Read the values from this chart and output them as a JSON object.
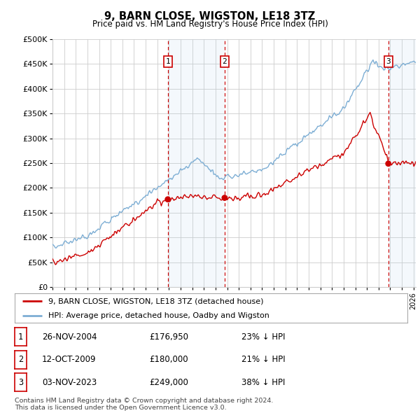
{
  "title": "9, BARN CLOSE, WIGSTON, LE18 3TZ",
  "subtitle": "Price paid vs. HM Land Registry's House Price Index (HPI)",
  "ylim": [
    0,
    500000
  ],
  "yticks": [
    0,
    50000,
    100000,
    150000,
    200000,
    250000,
    300000,
    350000,
    400000,
    450000,
    500000
  ],
  "ytick_labels": [
    "£0",
    "£50K",
    "£100K",
    "£150K",
    "£200K",
    "£250K",
    "£300K",
    "£350K",
    "£400K",
    "£450K",
    "£500K"
  ],
  "hpi_color": "#7daed4",
  "price_color": "#cc0000",
  "background_color": "#ffffff",
  "grid_color": "#cccccc",
  "sale1_date_x": 2004.9,
  "sale1_price": 176950,
  "sale2_date_x": 2009.78,
  "sale2_price": 180000,
  "sale3_date_x": 2023.84,
  "sale3_price": 249000,
  "legend_line1": "9, BARN CLOSE, WIGSTON, LE18 3TZ (detached house)",
  "legend_line2": "HPI: Average price, detached house, Oadby and Wigston",
  "table_entries": [
    {
      "num": "1",
      "date": "26-NOV-2004",
      "price": "£176,950",
      "hpi": "23% ↓ HPI"
    },
    {
      "num": "2",
      "date": "12-OCT-2009",
      "price": "£180,000",
      "hpi": "21% ↓ HPI"
    },
    {
      "num": "3",
      "date": "03-NOV-2023",
      "price": "£249,000",
      "hpi": "38% ↓ HPI"
    }
  ],
  "footnote": "Contains HM Land Registry data © Crown copyright and database right 2024.\nThis data is licensed under the Open Government Licence v3.0.",
  "shade1_start": 2004.9,
  "shade1_end": 2009.78,
  "shade3_start": 2023.84,
  "shade3_end": 2026.2,
  "xmin": 1995,
  "xmax": 2026.2
}
